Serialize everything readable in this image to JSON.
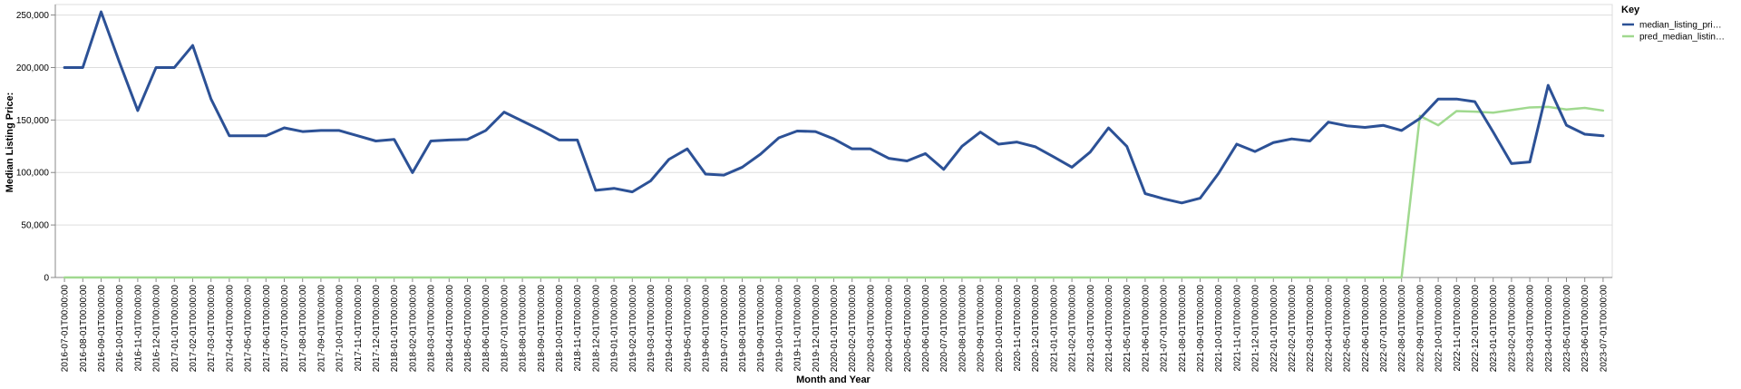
{
  "chart_data": {
    "type": "line",
    "title": "",
    "xlabel": "Month and Year",
    "ylabel": "Median Listing Price:",
    "ylim": [
      0,
      260000
    ],
    "y_ticks": [
      0,
      50000,
      100000,
      150000,
      200000,
      250000
    ],
    "y_tick_labels": [
      "0",
      "50,000",
      "100,000",
      "150,000",
      "200,000",
      "250,000"
    ],
    "grid": true,
    "legend": {
      "title": "Key",
      "placement": "top-right"
    },
    "x": [
      "2016-07-01T00:00:00",
      "2016-08-01T00:00:00",
      "2016-09-01T00:00:00",
      "2016-10-01T00:00:00",
      "2016-11-01T00:00:00",
      "2016-12-01T00:00:00",
      "2017-01-01T00:00:00",
      "2017-02-01T00:00:00",
      "2017-03-01T00:00:00",
      "2017-04-01T00:00:00",
      "2017-05-01T00:00:00",
      "2017-06-01T00:00:00",
      "2017-07-01T00:00:00",
      "2017-08-01T00:00:00",
      "2017-09-01T00:00:00",
      "2017-10-01T00:00:00",
      "2017-11-01T00:00:00",
      "2017-12-01T00:00:00",
      "2018-01-01T00:00:00",
      "2018-02-01T00:00:00",
      "2018-03-01T00:00:00",
      "2018-04-01T00:00:00",
      "2018-05-01T00:00:00",
      "2018-06-01T00:00:00",
      "2018-07-01T00:00:00",
      "2018-08-01T00:00:00",
      "2018-09-01T00:00:00",
      "2018-10-01T00:00:00",
      "2018-11-01T00:00:00",
      "2018-12-01T00:00:00",
      "2019-01-01T00:00:00",
      "2019-02-01T00:00:00",
      "2019-03-01T00:00:00",
      "2019-04-01T00:00:00",
      "2019-05-01T00:00:00",
      "2019-06-01T00:00:00",
      "2019-07-01T00:00:00",
      "2019-08-01T00:00:00",
      "2019-09-01T00:00:00",
      "2019-10-01T00:00:00",
      "2019-11-01T00:00:00",
      "2019-12-01T00:00:00",
      "2020-01-01T00:00:00",
      "2020-02-01T00:00:00",
      "2020-03-01T00:00:00",
      "2020-04-01T00:00:00",
      "2020-05-01T00:00:00",
      "2020-06-01T00:00:00",
      "2020-07-01T00:00:00",
      "2020-08-01T00:00:00",
      "2020-09-01T00:00:00",
      "2020-10-01T00:00:00",
      "2020-11-01T00:00:00",
      "2020-12-01T00:00:00",
      "2021-01-01T00:00:00",
      "2021-02-01T00:00:00",
      "2021-03-01T00:00:00",
      "2021-04-01T00:00:00",
      "2021-05-01T00:00:00",
      "2021-06-01T00:00:00",
      "2021-07-01T00:00:00",
      "2021-08-01T00:00:00",
      "2021-09-01T00:00:00",
      "2021-10-01T00:00:00",
      "2021-11-01T00:00:00",
      "2021-12-01T00:00:00",
      "2022-01-01T00:00:00",
      "2022-02-01T00:00:00",
      "2022-03-01T00:00:00",
      "2022-04-01T00:00:00",
      "2022-05-01T00:00:00",
      "2022-06-01T00:00:00",
      "2022-07-01T00:00:00",
      "2022-08-01T00:00:00",
      "2022-09-01T00:00:00",
      "2022-10-01T00:00:00",
      "2022-11-01T00:00:00",
      "2022-12-01T00:00:00",
      "2023-01-01T00:00:00",
      "2023-02-01T00:00:00",
      "2023-03-01T00:00:00",
      "2023-04-01T00:00:00",
      "2023-05-01T00:00:00",
      "2023-06-01T00:00:00",
      "2023-07-01T00:00:00"
    ],
    "series": [
      {
        "name": "median_listing_pri…",
        "color": "#2c5196",
        "values": [
          200000,
          200000,
          253000,
          205000,
          159000,
          200000,
          200000,
          221000,
          170000,
          135000,
          135000,
          135000,
          142500,
          139000,
          140000,
          140000,
          135000,
          130000,
          131500,
          99900,
          130000,
          131000,
          131500,
          140000,
          157500,
          149000,
          140500,
          131000,
          131000,
          83000,
          84900,
          81500,
          92000,
          112500,
          122500,
          98500,
          97500,
          105000,
          117500,
          133000,
          139500,
          139000,
          132000,
          122500,
          122500,
          113500,
          111000,
          118000,
          103000,
          125000,
          138500,
          127000,
          129000,
          124500,
          114900,
          105000,
          119500,
          142500,
          124900,
          79900,
          75000,
          71000,
          75500,
          99000,
          127000,
          120000,
          128500,
          132000,
          130000,
          148000,
          144500,
          143000,
          144900,
          140000,
          151500,
          170000,
          170000,
          167500,
          138500,
          108500,
          110000,
          183000,
          145000,
          136500,
          135000
        ]
      },
      {
        "name": "pred_median_listin…",
        "color": "#a0d98f",
        "values": [
          0,
          0,
          0,
          0,
          0,
          0,
          0,
          0,
          0,
          0,
          0,
          0,
          0,
          0,
          0,
          0,
          0,
          0,
          0,
          0,
          0,
          0,
          0,
          0,
          0,
          0,
          0,
          0,
          0,
          0,
          0,
          0,
          0,
          0,
          0,
          0,
          0,
          0,
          0,
          0,
          0,
          0,
          0,
          0,
          0,
          0,
          0,
          0,
          0,
          0,
          0,
          0,
          0,
          0,
          0,
          0,
          0,
          0,
          0,
          0,
          0,
          0,
          0,
          0,
          0,
          0,
          0,
          0,
          0,
          0,
          0,
          0,
          0,
          0,
          154000,
          145000,
          158500,
          158000,
          157000,
          159500,
          162000,
          162500,
          160000,
          161500,
          159000
        ]
      }
    ]
  }
}
